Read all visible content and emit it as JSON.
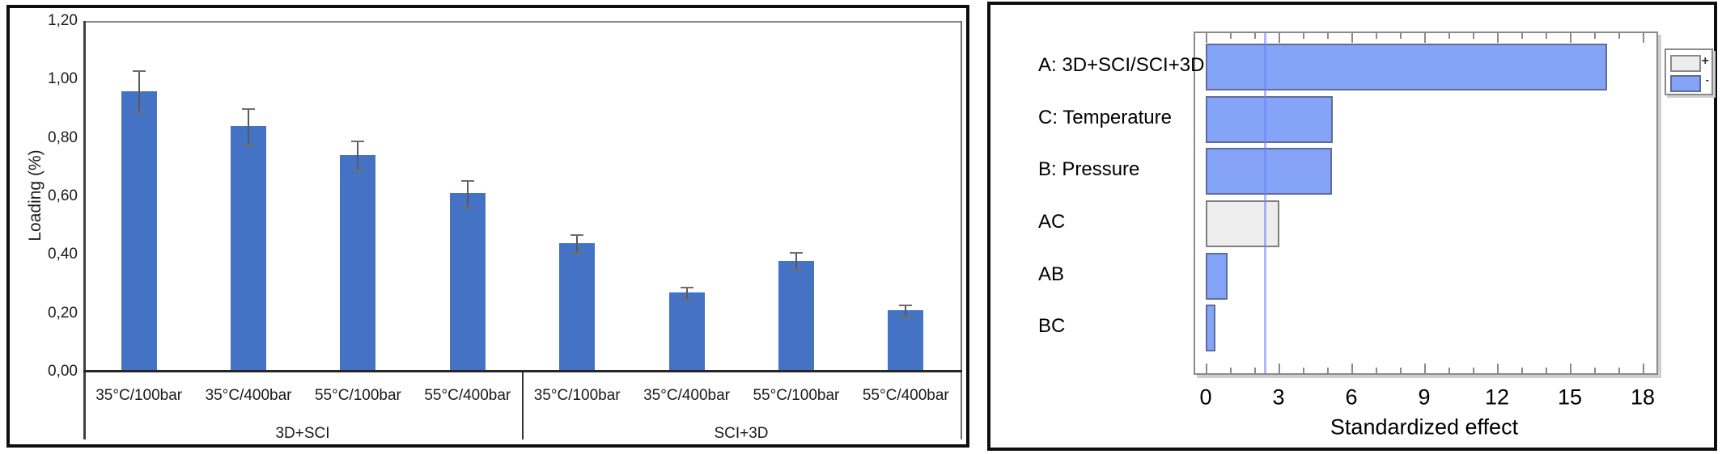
{
  "chart_data": [
    {
      "type": "bar",
      "orientation": "vertical",
      "ylabel": "Loading (%)",
      "ylim": [
        0,
        1.2
      ],
      "ytick_step": 0.2,
      "ytick_labels": [
        "0,00",
        "0,20",
        "0,40",
        "0,60",
        "0,80",
        "1,00",
        "1,20"
      ],
      "group_labels": [
        "3D+SCI",
        "SCI+3D"
      ],
      "categories": [
        "35°C/100bar",
        "35°C/400bar",
        "55°C/100bar",
        "55°C/400bar",
        "35°C/100bar",
        "35°C/400bar",
        "55°C/100bar",
        "55°C/400bar"
      ],
      "values": [
        0.96,
        0.84,
        0.74,
        0.61,
        0.44,
        0.27,
        0.38,
        0.21
      ],
      "errors": [
        0.07,
        0.06,
        0.05,
        0.045,
        0.03,
        0.02,
        0.03,
        0.02
      ],
      "bar_color": "#4472C4",
      "error_color": "#595959",
      "grid": false,
      "legend_position": "none"
    },
    {
      "type": "bar",
      "orientation": "horizontal",
      "xlabel": "Standardized effect",
      "xlim": [
        0,
        18
      ],
      "xticks": [
        0,
        3,
        6,
        9,
        12,
        15,
        18
      ],
      "minor_tick_interval": 1,
      "categories": [
        "A: 3D+SCI/SCI+3D",
        "C: Temperature",
        "B: Pressure",
        "AC",
        "AB",
        "BC"
      ],
      "values": [
        16.4,
        5.1,
        5.05,
        2.9,
        0.75,
        0.25
      ],
      "signs": [
        "-",
        "-",
        "-",
        "+",
        "-",
        "-"
      ],
      "reference_line": 2.45,
      "colors": {
        "positive_fill": "#EDEDED",
        "negative_fill": "#86A4F7",
        "reference_line": "#6A82F0"
      },
      "legend": [
        {
          "label": "+",
          "fill": "#EDEDED"
        },
        {
          "label": "-",
          "fill": "#86A4F7"
        }
      ],
      "legend_position": "top-right",
      "grid": false
    }
  ]
}
